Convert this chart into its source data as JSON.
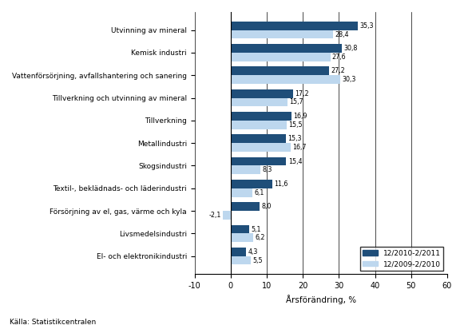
{
  "categories": [
    "Utvinning av mineral",
    "Kemisk industri",
    "Vattenförsörjning, avfallshantering och sanering",
    "Tillverkning och utvinning av mineral",
    "Tillverkning",
    "Metallindustri",
    "Skogsindustri",
    "Textil-, beklädnads- och läderindustri",
    "Försörjning av el, gas, värme och kyla",
    "Livsmedelsindustri",
    "El- och elektronikindustri"
  ],
  "values_2011": [
    35.3,
    30.8,
    27.2,
    17.2,
    16.9,
    15.3,
    15.4,
    11.6,
    8.0,
    5.1,
    4.3
  ],
  "values_2010": [
    28.4,
    27.6,
    30.3,
    15.7,
    15.5,
    16.7,
    8.3,
    6.1,
    -2.1,
    6.2,
    5.5
  ],
  "color_2011": "#1F4E79",
  "color_2010": "#BDD7EE",
  "legend_2011": "12/2010-2/2011",
  "legend_2010": "12/2009-2/2010",
  "xlabel": "Årsförändring, %",
  "source": "Källa: Statistikcentralen",
  "xlim": [
    -10,
    60
  ],
  "xticks": [
    -10,
    0,
    10,
    20,
    30,
    40,
    50,
    60
  ],
  "bar_height": 0.38
}
